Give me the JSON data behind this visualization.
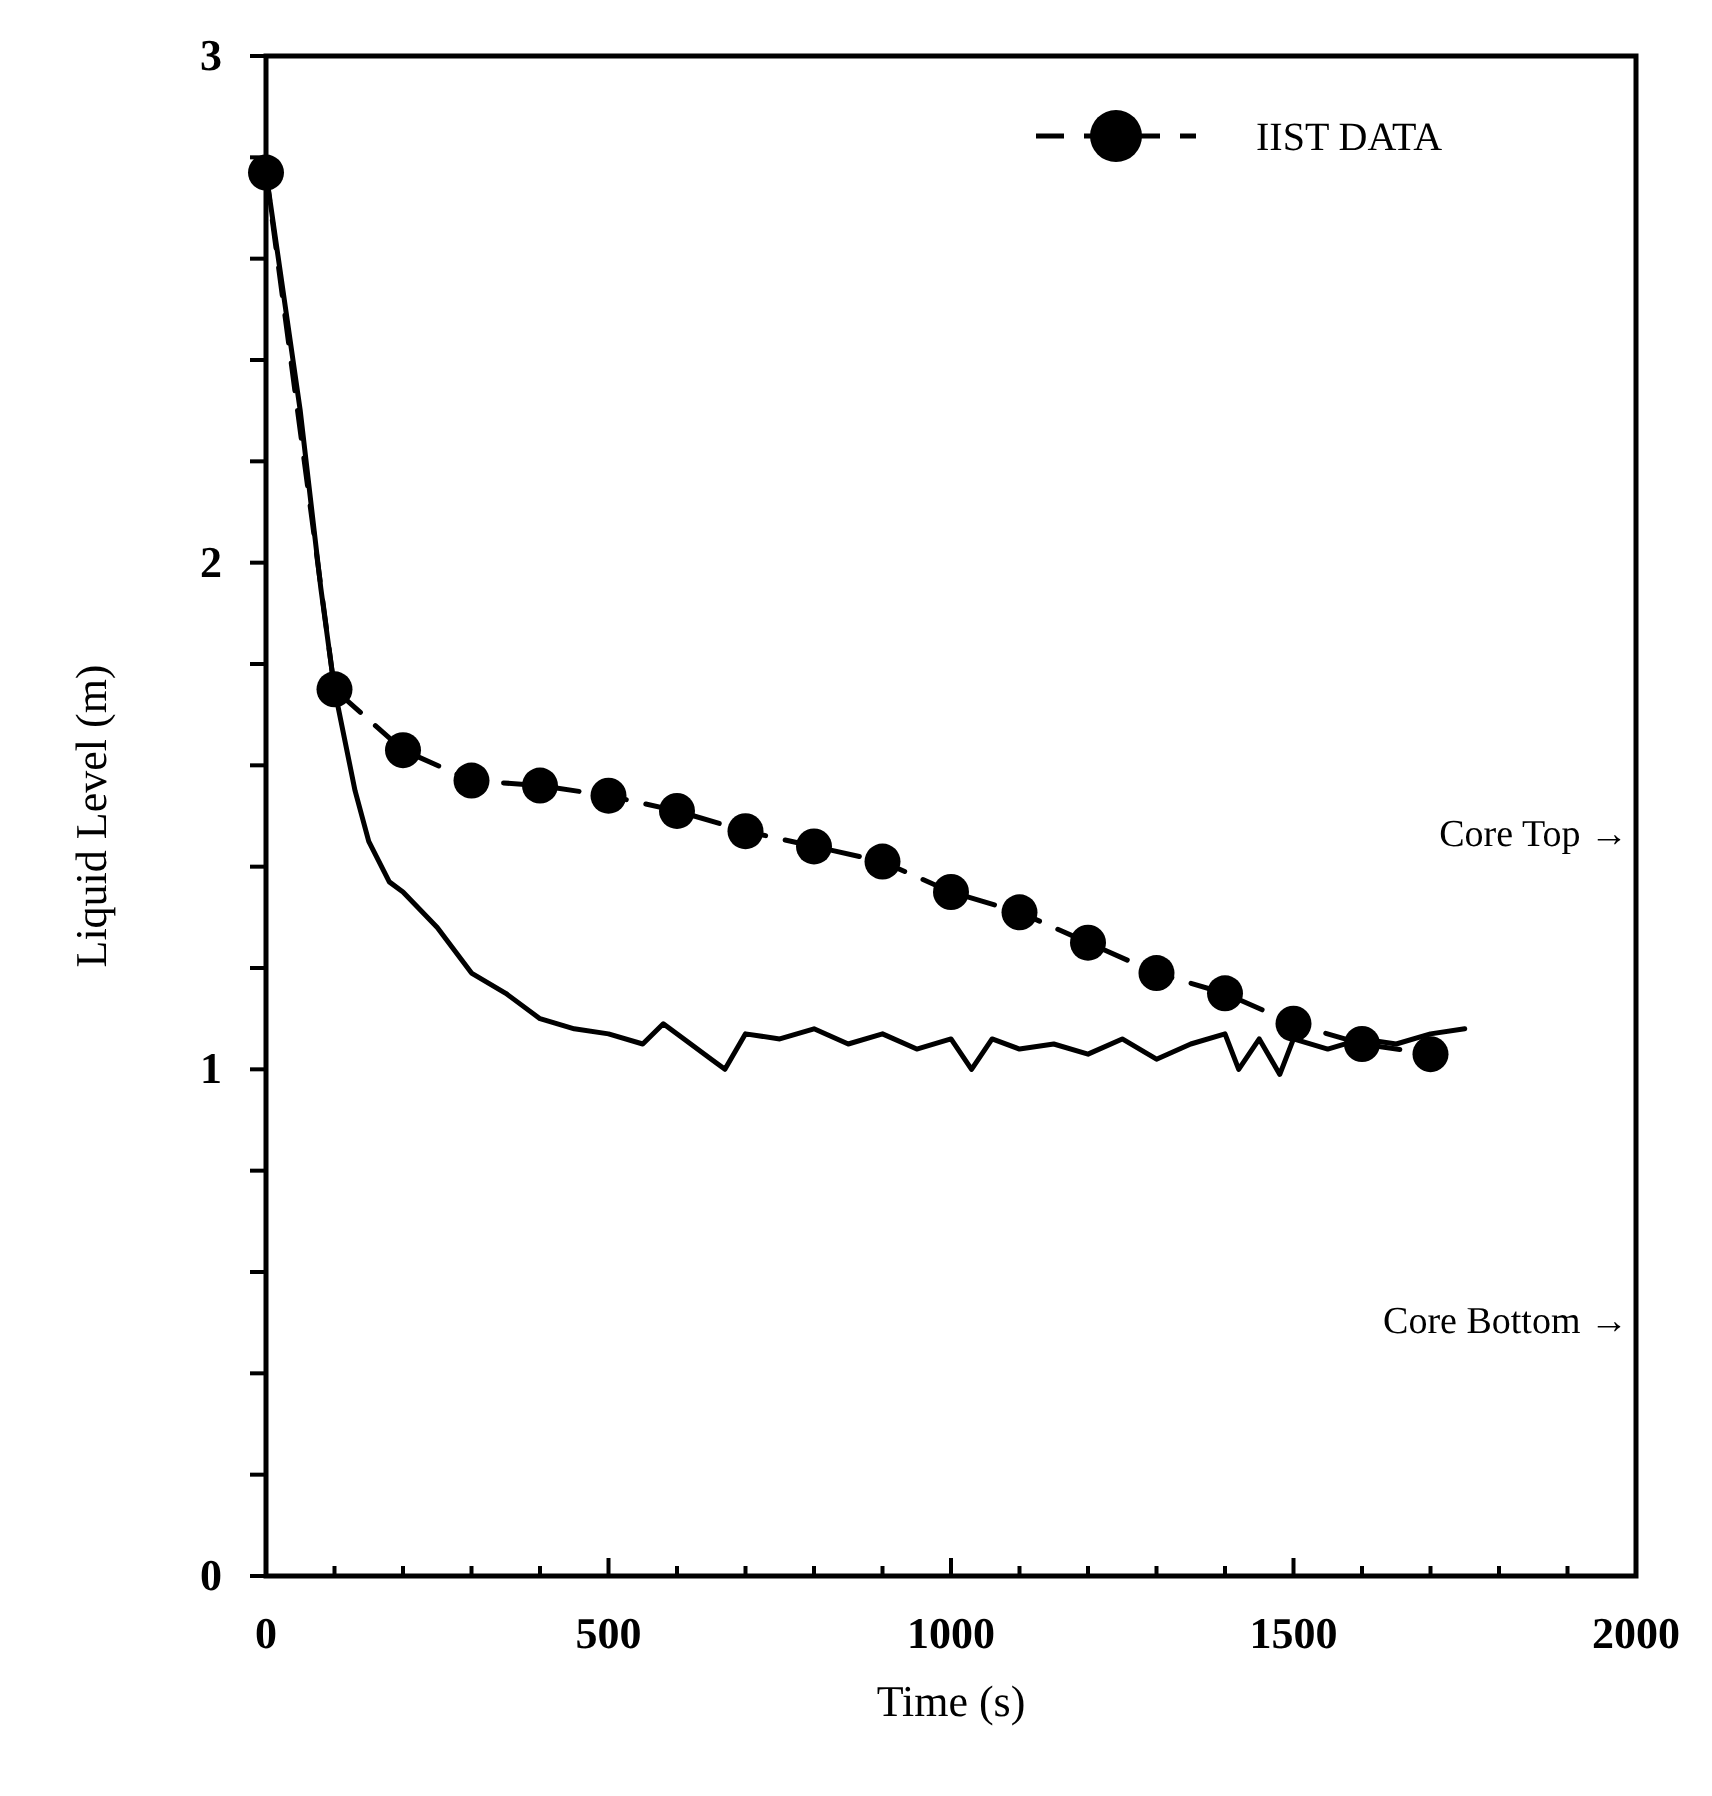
{
  "chart_data": {
    "type": "line",
    "xlabel": "Time (s)",
    "ylabel": "Liquid Level (m)",
    "xlim": [
      0,
      2000
    ],
    "xticks": [
      0,
      {
        "value": 100,
        "label": null
      },
      {
        "value": 200,
        "label": null
      },
      {
        "value": 300,
        "label": null
      },
      {
        "value": 400,
        "label": null
      },
      500,
      {
        "value": 600,
        "label": null
      },
      {
        "value": 700,
        "label": null
      },
      {
        "value": 800,
        "label": null
      },
      {
        "value": 900,
        "label": null
      },
      1000,
      {
        "value": 1100,
        "label": null
      },
      {
        "value": 1200,
        "label": null
      },
      {
        "value": 1300,
        "label": null
      },
      {
        "value": 1400,
        "label": null
      },
      1500,
      {
        "value": 1600,
        "label": null
      },
      {
        "value": 1700,
        "label": null
      },
      {
        "value": 1800,
        "label": null
      },
      {
        "value": 1900,
        "label": null
      },
      2000
    ],
    "ylim": [
      0,
      3
    ],
    "yticks": [
      0,
      {
        "value": 0.2,
        "label": null
      },
      {
        "value": 0.4,
        "label": null
      },
      {
        "value": 0.6,
        "label": null
      },
      {
        "value": 0.8,
        "label": null
      },
      1,
      {
        "value": 1.2,
        "label": null
      },
      {
        "value": 1.4,
        "label": null
      },
      {
        "value": 1.6,
        "label": null
      },
      {
        "value": 1.8,
        "label": null
      },
      2,
      {
        "value": 2.2,
        "label": null
      },
      {
        "value": 2.4,
        "label": null
      },
      {
        "value": 2.6,
        "label": null
      },
      {
        "value": 2.8,
        "label": null
      },
      3
    ],
    "grid": false,
    "legend": "top right",
    "series": [
      {
        "name": "IIST DATA",
        "color": "#000000",
        "marker": "circle",
        "line_style": "dashed",
        "x": [
          0,
          100,
          200,
          300,
          400,
          500,
          600,
          700,
          800,
          900,
          1000,
          1100,
          1200,
          1300,
          1400,
          1500,
          1600,
          1700
        ],
        "values": [
          2.77,
          1.75,
          1.63,
          1.57,
          1.56,
          1.54,
          1.51,
          1.47,
          1.44,
          1.41,
          1.35,
          1.31,
          1.25,
          1.19,
          1.15,
          1.09,
          1.05,
          1.03
        ]
      },
      {
        "color": "#000000",
        "marker": "none",
        "line_style": "solid",
        "x": [
          0,
          50,
          80,
          100,
          130,
          150,
          180,
          200,
          250,
          300,
          350,
          400,
          450,
          500,
          550,
          580,
          620,
          650,
          670,
          700,
          750,
          800,
          850,
          900,
          950,
          1000,
          1030,
          1060,
          1100,
          1150,
          1200,
          1250,
          1300,
          1350,
          1400,
          1420,
          1450,
          1480,
          1500,
          1550,
          1600,
          1650,
          1700,
          1750
        ],
        "values": [
          2.77,
          2.3,
          1.95,
          1.75,
          1.55,
          1.45,
          1.37,
          1.35,
          1.28,
          1.19,
          1.15,
          1.1,
          1.08,
          1.07,
          1.05,
          1.09,
          1.05,
          1.02,
          1.0,
          1.07,
          1.06,
          1.08,
          1.05,
          1.07,
          1.04,
          1.06,
          1.0,
          1.06,
          1.04,
          1.05,
          1.03,
          1.06,
          1.02,
          1.05,
          1.07,
          1.0,
          1.06,
          0.99,
          1.06,
          1.04,
          1.06,
          1.05,
          1.07,
          1.08
        ]
      }
    ],
    "annotations": [
      "Core Top →",
      "Core Bottom →"
    ]
  }
}
